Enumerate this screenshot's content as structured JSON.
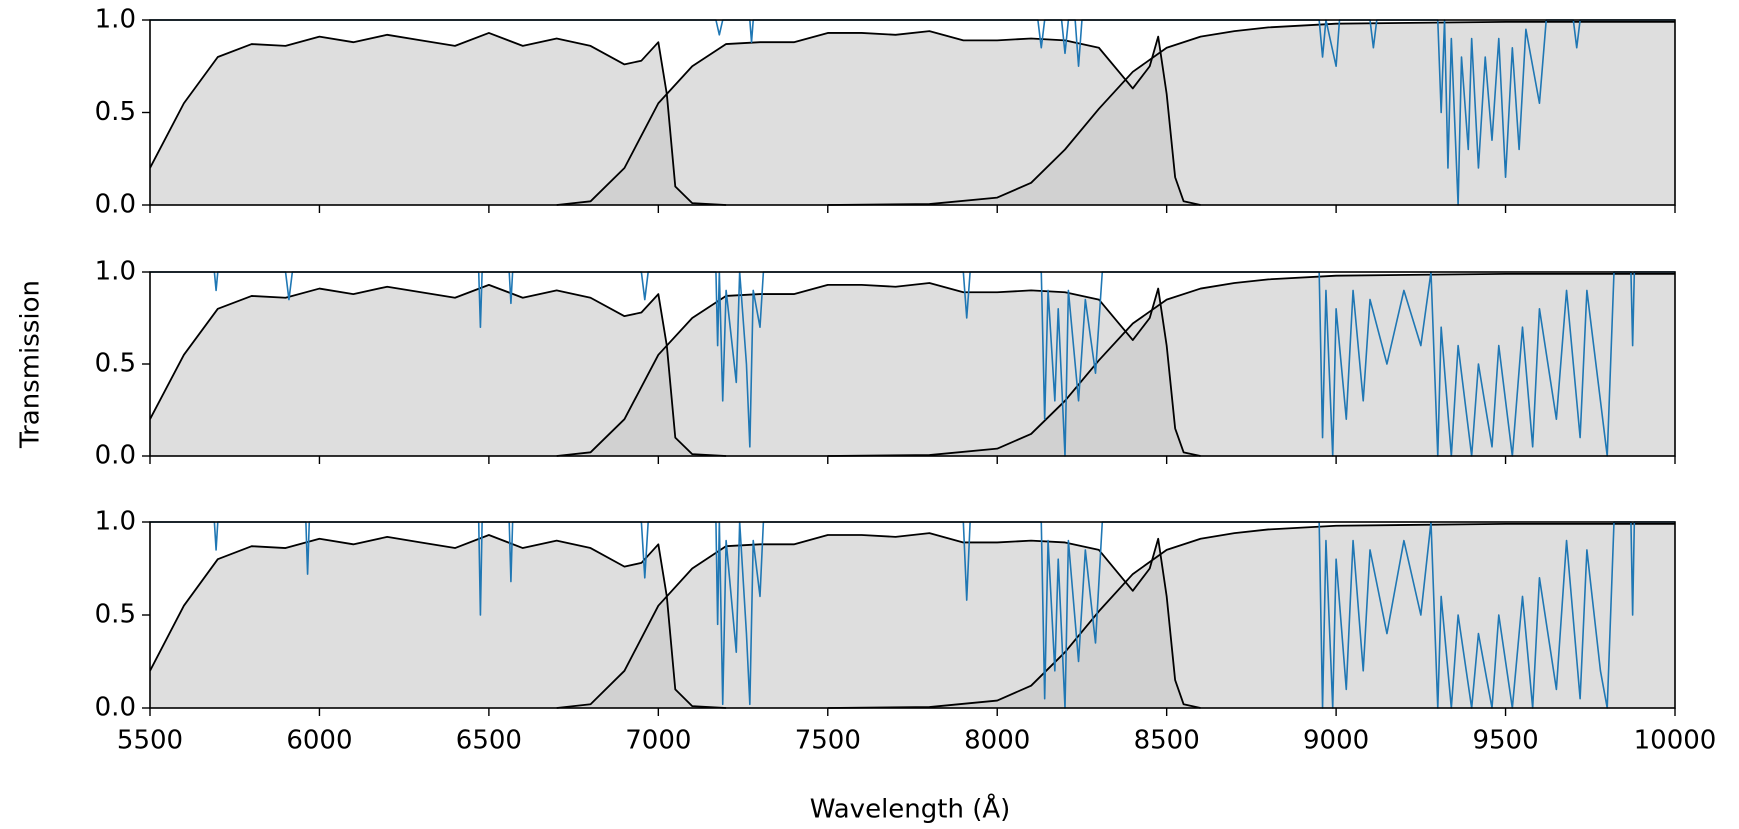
{
  "figure": {
    "xlabel": "Wavelength (Å)",
    "ylabel": "Transmission"
  },
  "chart_data": [
    {
      "type": "line",
      "xlim": [
        5500,
        10000
      ],
      "ylim": [
        0,
        1
      ],
      "xticks": [
        5500,
        6000,
        6500,
        7000,
        7500,
        8000,
        8500,
        9000,
        9500,
        10000
      ],
      "show_xtick_labels": false,
      "yticks": [
        {
          "value": 0,
          "label": "0.0"
        },
        {
          "value": 0.5,
          "label": "0.5"
        },
        {
          "value": 1,
          "label": "1.0"
        }
      ],
      "series": [
        {
          "color": "#000000",
          "fill": "#c8c8c8",
          "x": [
            5500,
            5600,
            5700,
            5800,
            5900,
            6000,
            6100,
            6200,
            6300,
            6400,
            6500,
            6600,
            6700,
            6800,
            6900,
            6950,
            7000,
            7025,
            7050,
            7100,
            7200
          ],
          "values": [
            0.2,
            0.55,
            0.8,
            0.87,
            0.86,
            0.91,
            0.88,
            0.92,
            0.89,
            0.86,
            0.93,
            0.86,
            0.9,
            0.86,
            0.76,
            0.78,
            0.88,
            0.6,
            0.1,
            0.01,
            0
          ]
        },
        {
          "color": "#000000",
          "fill": "#c8c8c8",
          "x": [
            6700,
            6800,
            6900,
            7000,
            7100,
            7200,
            7300,
            7400,
            7500,
            7600,
            7700,
            7800,
            7900,
            8000,
            8100,
            8200,
            8300,
            8400,
            8450,
            8475,
            8500,
            8525,
            8550,
            8600
          ],
          "values": [
            0,
            0.02,
            0.2,
            0.55,
            0.75,
            0.87,
            0.88,
            0.88,
            0.93,
            0.93,
            0.92,
            0.94,
            0.89,
            0.89,
            0.9,
            0.89,
            0.85,
            0.63,
            0.75,
            0.91,
            0.6,
            0.15,
            0.02,
            0
          ]
        },
        {
          "color": "#000000",
          "fill": "#c8c8c8",
          "x": [
            7500,
            7800,
            8000,
            8100,
            8200,
            8300,
            8400,
            8500,
            8600,
            8700,
            8800,
            9000,
            9500,
            10000
          ],
          "values": [
            0,
            0.005,
            0.04,
            0.12,
            0.3,
            0.52,
            0.72,
            0.85,
            0.91,
            0.94,
            0.96,
            0.98,
            0.99,
            0.99
          ]
        },
        {
          "color": "#1f77b4",
          "x": [
            5500,
            7170,
            7180,
            7190,
            7270,
            7275,
            7280,
            8120,
            8130,
            8140,
            8190,
            8200,
            8210,
            8230,
            8240,
            8250,
            8950,
            8960,
            8970,
            9000,
            9010,
            9100,
            9110,
            9120,
            9300,
            9310,
            9320,
            9330,
            9340,
            9360,
            9370,
            9390,
            9400,
            9420,
            9440,
            9460,
            9480,
            9500,
            9520,
            9540,
            9560,
            9600,
            9620,
            9700,
            9710,
            9720,
            10000
          ],
          "values": [
            1,
            1,
            0.92,
            1,
            1,
            0.88,
            1,
            1,
            0.85,
            1,
            1,
            0.82,
            1,
            1,
            0.75,
            1,
            1,
            0.8,
            1,
            0.75,
            1,
            1,
            0.85,
            1,
            1,
            0.5,
            1,
            0.2,
            0.9,
            0,
            0.8,
            0.3,
            0.9,
            0.2,
            0.8,
            0.35,
            0.9,
            0.15,
            0.85,
            0.3,
            0.95,
            0.55,
            1,
            1,
            0.85,
            1,
            1
          ]
        }
      ]
    },
    {
      "type": "line",
      "xlim": [
        5500,
        10000
      ],
      "ylim": [
        0,
        1
      ],
      "xticks": [
        5500,
        6000,
        6500,
        7000,
        7500,
        8000,
        8500,
        9000,
        9500,
        10000
      ],
      "show_xtick_labels": false,
      "yticks": [
        {
          "value": 0,
          "label": "0.0"
        },
        {
          "value": 0.5,
          "label": "0.5"
        },
        {
          "value": 1,
          "label": "1.0"
        }
      ],
      "series": [
        {
          "color": "#000000",
          "fill": "#c8c8c8",
          "x": [
            5500,
            5600,
            5700,
            5800,
            5900,
            6000,
            6100,
            6200,
            6300,
            6400,
            6500,
            6600,
            6700,
            6800,
            6900,
            6950,
            7000,
            7025,
            7050,
            7100,
            7200
          ],
          "values": [
            0.2,
            0.55,
            0.8,
            0.87,
            0.86,
            0.91,
            0.88,
            0.92,
            0.89,
            0.86,
            0.93,
            0.86,
            0.9,
            0.86,
            0.76,
            0.78,
            0.88,
            0.6,
            0.1,
            0.01,
            0
          ]
        },
        {
          "color": "#000000",
          "fill": "#c8c8c8",
          "x": [
            6700,
            6800,
            6900,
            7000,
            7100,
            7200,
            7300,
            7400,
            7500,
            7600,
            7700,
            7800,
            7900,
            8000,
            8100,
            8200,
            8300,
            8400,
            8450,
            8475,
            8500,
            8525,
            8550,
            8600
          ],
          "values": [
            0,
            0.02,
            0.2,
            0.55,
            0.75,
            0.87,
            0.88,
            0.88,
            0.93,
            0.93,
            0.92,
            0.94,
            0.89,
            0.89,
            0.9,
            0.89,
            0.85,
            0.63,
            0.75,
            0.91,
            0.6,
            0.15,
            0.02,
            0
          ]
        },
        {
          "color": "#000000",
          "fill": "#c8c8c8",
          "x": [
            7500,
            7800,
            8000,
            8100,
            8200,
            8300,
            8400,
            8500,
            8600,
            8700,
            8800,
            9000,
            9500,
            10000
          ],
          "values": [
            0,
            0.005,
            0.04,
            0.12,
            0.3,
            0.52,
            0.72,
            0.85,
            0.91,
            0.94,
            0.96,
            0.98,
            0.99,
            0.99
          ]
        },
        {
          "color": "#1f77b4",
          "x": [
            5500,
            5690,
            5695,
            5700,
            5900,
            5910,
            5920,
            6470,
            6475,
            6480,
            6560,
            6565,
            6570,
            6950,
            6960,
            6970,
            7170,
            7175,
            7180,
            7190,
            7200,
            7230,
            7240,
            7260,
            7270,
            7280,
            7300,
            7310,
            7900,
            7910,
            7920,
            8130,
            8140,
            8150,
            8170,
            8180,
            8200,
            8210,
            8240,
            8260,
            8290,
            8310,
            8950,
            8960,
            8970,
            8990,
            9000,
            9030,
            9050,
            9080,
            9100,
            9150,
            9200,
            9250,
            9280,
            9300,
            9310,
            9340,
            9360,
            9400,
            9420,
            9460,
            9480,
            9520,
            9550,
            9580,
            9600,
            9650,
            9680,
            9720,
            9740,
            9780,
            9800,
            9820,
            9870,
            9875,
            9880,
            10000
          ],
          "values": [
            1,
            1,
            0.9,
            1,
            1,
            0.85,
            1,
            1,
            0.7,
            1,
            1,
            0.83,
            1,
            1,
            0.85,
            1,
            1,
            0.6,
            1,
            0.3,
            0.9,
            0.4,
            1,
            0.5,
            0.05,
            0.9,
            0.7,
            1,
            1,
            0.75,
            1,
            1,
            0.2,
            0.9,
            0.3,
            0.8,
            0,
            0.9,
            0.3,
            0.85,
            0.45,
            1,
            1,
            0.1,
            0.9,
            0,
            0.8,
            0.2,
            0.9,
            0.3,
            0.85,
            0.5,
            0.9,
            0.6,
            1,
            0,
            0.7,
            0,
            0.6,
            0,
            0.5,
            0.05,
            0.6,
            0,
            0.7,
            0.05,
            0.8,
            0.2,
            0.9,
            0.1,
            0.9,
            0.3,
            0,
            1,
            1,
            0.6,
            1,
            1
          ]
        }
      ]
    },
    {
      "type": "line",
      "xlim": [
        5500,
        10000
      ],
      "ylim": [
        0,
        1
      ],
      "xticks": [
        5500,
        6000,
        6500,
        7000,
        7500,
        8000,
        8500,
        9000,
        9500,
        10000
      ],
      "show_xtick_labels": true,
      "yticks": [
        {
          "value": 0,
          "label": "0.0"
        },
        {
          "value": 0.5,
          "label": "0.5"
        },
        {
          "value": 1,
          "label": "1.0"
        }
      ],
      "series": [
        {
          "color": "#000000",
          "fill": "#c8c8c8",
          "x": [
            5500,
            5600,
            5700,
            5800,
            5900,
            6000,
            6100,
            6200,
            6300,
            6400,
            6500,
            6600,
            6700,
            6800,
            6900,
            6950,
            7000,
            7025,
            7050,
            7100,
            7200
          ],
          "values": [
            0.2,
            0.55,
            0.8,
            0.87,
            0.86,
            0.91,
            0.88,
            0.92,
            0.89,
            0.86,
            0.93,
            0.86,
            0.9,
            0.86,
            0.76,
            0.78,
            0.88,
            0.6,
            0.1,
            0.01,
            0
          ]
        },
        {
          "color": "#000000",
          "fill": "#c8c8c8",
          "x": [
            6700,
            6800,
            6900,
            7000,
            7100,
            7200,
            7300,
            7400,
            7500,
            7600,
            7700,
            7800,
            7900,
            8000,
            8100,
            8200,
            8300,
            8400,
            8450,
            8475,
            8500,
            8525,
            8550,
            8600
          ],
          "values": [
            0,
            0.02,
            0.2,
            0.55,
            0.75,
            0.87,
            0.88,
            0.88,
            0.93,
            0.93,
            0.92,
            0.94,
            0.89,
            0.89,
            0.9,
            0.89,
            0.85,
            0.63,
            0.75,
            0.91,
            0.6,
            0.15,
            0.02,
            0
          ]
        },
        {
          "color": "#000000",
          "fill": "#c8c8c8",
          "x": [
            7500,
            7800,
            8000,
            8100,
            8200,
            8300,
            8400,
            8500,
            8600,
            8700,
            8800,
            9000,
            9500,
            10000
          ],
          "values": [
            0,
            0.005,
            0.04,
            0.12,
            0.3,
            0.52,
            0.72,
            0.85,
            0.91,
            0.94,
            0.96,
            0.98,
            0.99,
            0.99
          ]
        },
        {
          "color": "#1f77b4",
          "x": [
            5500,
            5690,
            5695,
            5700,
            5960,
            5965,
            5970,
            6470,
            6475,
            6480,
            6560,
            6565,
            6570,
            6950,
            6960,
            6970,
            7170,
            7175,
            7180,
            7190,
            7200,
            7230,
            7240,
            7260,
            7270,
            7280,
            7300,
            7310,
            7900,
            7910,
            7920,
            8130,
            8140,
            8150,
            8170,
            8180,
            8200,
            8210,
            8240,
            8260,
            8290,
            8310,
            8950,
            8960,
            8970,
            8990,
            9000,
            9030,
            9050,
            9080,
            9100,
            9150,
            9200,
            9250,
            9280,
            9300,
            9310,
            9340,
            9360,
            9400,
            9420,
            9460,
            9480,
            9520,
            9550,
            9580,
            9600,
            9650,
            9680,
            9720,
            9740,
            9780,
            9800,
            9820,
            9870,
            9875,
            9880,
            10000
          ],
          "values": [
            1,
            1,
            0.85,
            1,
            1,
            0.72,
            1,
            1,
            0.5,
            1,
            1,
            0.68,
            1,
            1,
            0.7,
            1,
            1,
            0.45,
            1,
            0.02,
            0.9,
            0.3,
            1,
            0.4,
            0.02,
            0.9,
            0.6,
            1,
            1,
            0.58,
            1,
            1,
            0.05,
            0.9,
            0.2,
            0.8,
            0,
            0.9,
            0.25,
            0.85,
            0.35,
            1,
            1,
            0,
            0.9,
            0,
            0.8,
            0.1,
            0.9,
            0.2,
            0.85,
            0.4,
            0.9,
            0.5,
            1,
            0,
            0.6,
            0,
            0.5,
            0,
            0.4,
            0,
            0.5,
            0,
            0.6,
            0,
            0.7,
            0.1,
            0.9,
            0.05,
            0.85,
            0.2,
            0,
            1,
            1,
            0.5,
            1,
            1
          ]
        }
      ]
    }
  ]
}
